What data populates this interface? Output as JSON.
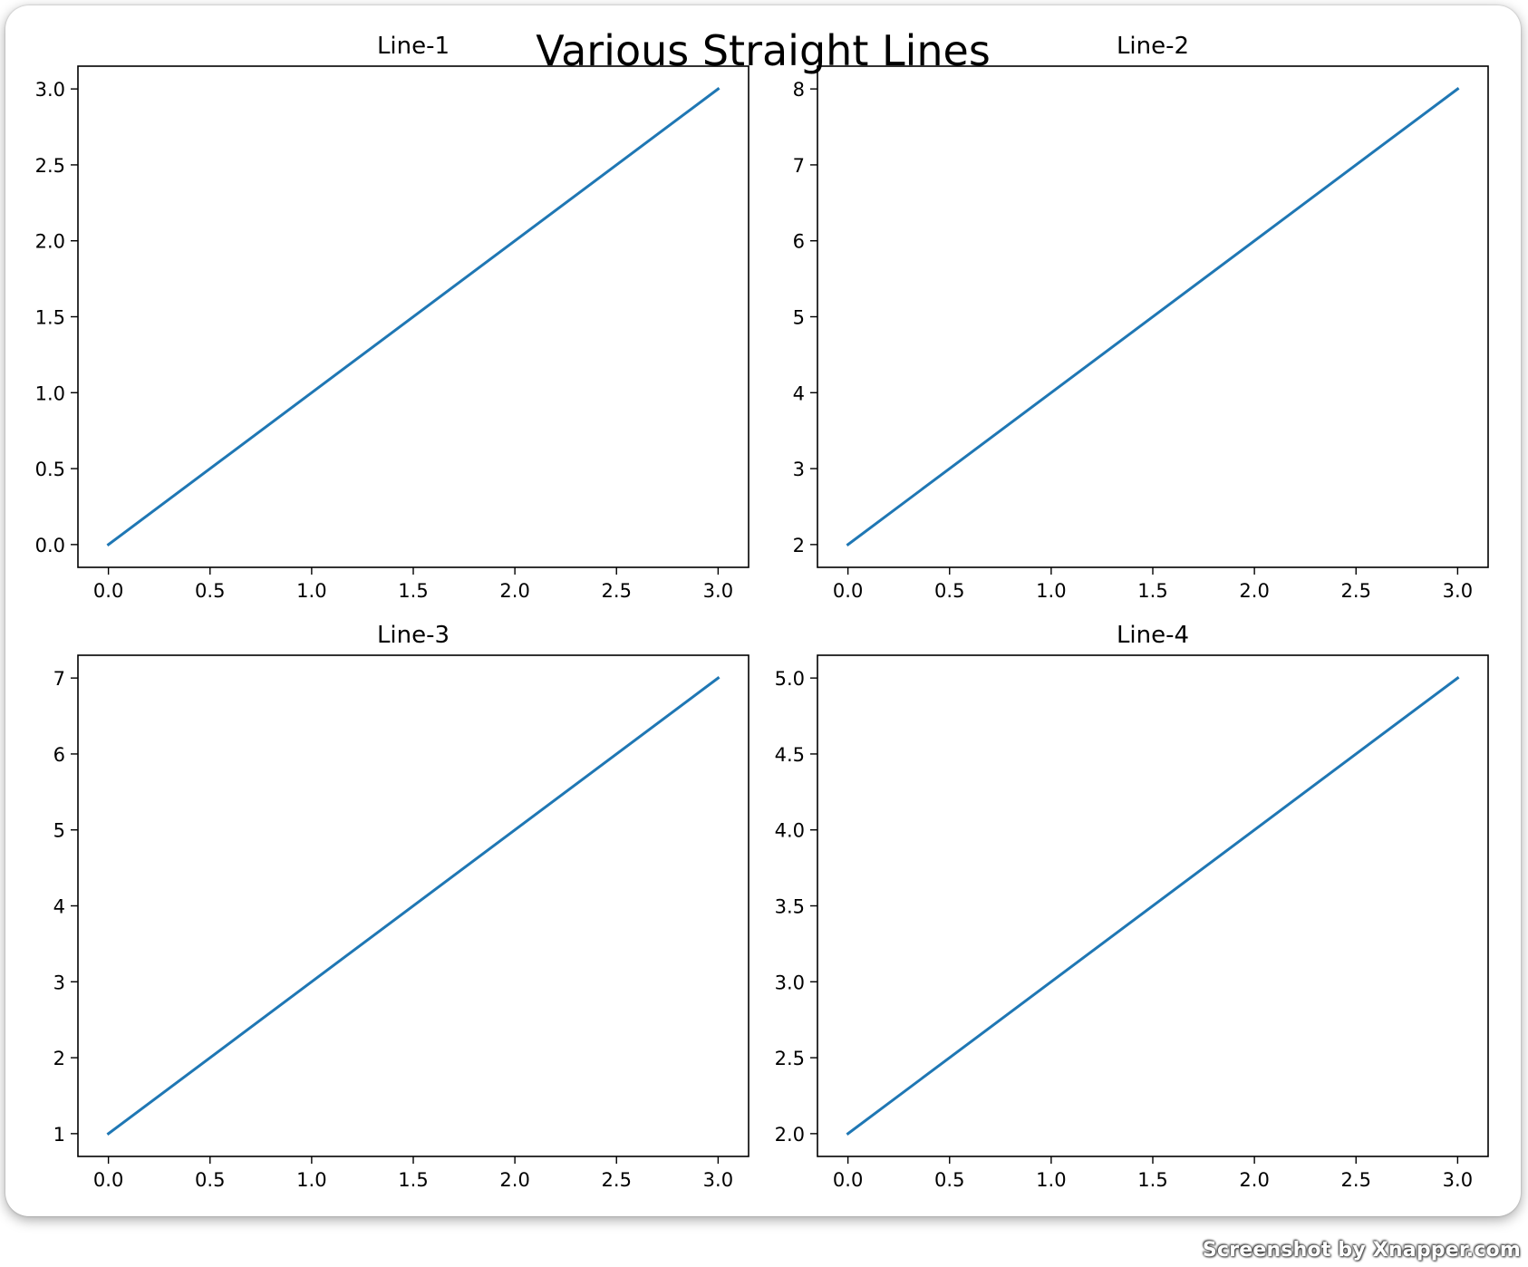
{
  "chart_data": {
    "title": "Various Straight Lines",
    "line_color": "#1f77b4",
    "subplots": [
      {
        "type": "line",
        "title": "Line-1",
        "x": [
          0,
          3
        ],
        "y": [
          0,
          3
        ],
        "xlim": [
          -0.15,
          3.15
        ],
        "ylim": [
          -0.15,
          3.15
        ],
        "xticks": [
          0.0,
          0.5,
          1.0,
          1.5,
          2.0,
          2.5,
          3.0
        ],
        "yticks": [
          0.0,
          0.5,
          1.0,
          1.5,
          2.0,
          2.5,
          3.0
        ],
        "xtick_labels": [
          "0.0",
          "0.5",
          "1.0",
          "1.5",
          "2.0",
          "2.5",
          "3.0"
        ],
        "ytick_labels": [
          "0.0",
          "0.5",
          "1.0",
          "1.5",
          "2.0",
          "2.5",
          "3.0"
        ],
        "grid": false
      },
      {
        "type": "line",
        "title": "Line-2",
        "x": [
          0,
          3
        ],
        "y": [
          2,
          8
        ],
        "xlim": [
          -0.15,
          3.15
        ],
        "ylim": [
          1.7,
          8.3
        ],
        "xticks": [
          0.0,
          0.5,
          1.0,
          1.5,
          2.0,
          2.5,
          3.0
        ],
        "yticks": [
          2,
          3,
          4,
          5,
          6,
          7,
          8
        ],
        "xtick_labels": [
          "0.0",
          "0.5",
          "1.0",
          "1.5",
          "2.0",
          "2.5",
          "3.0"
        ],
        "ytick_labels": [
          "2",
          "3",
          "4",
          "5",
          "6",
          "7",
          "8"
        ],
        "grid": false
      },
      {
        "type": "line",
        "title": "Line-3",
        "x": [
          0,
          3
        ],
        "y": [
          1,
          7
        ],
        "xlim": [
          -0.15,
          3.15
        ],
        "ylim": [
          0.7,
          7.3
        ],
        "xticks": [
          0.0,
          0.5,
          1.0,
          1.5,
          2.0,
          2.5,
          3.0
        ],
        "yticks": [
          1,
          2,
          3,
          4,
          5,
          6,
          7
        ],
        "xtick_labels": [
          "0.0",
          "0.5",
          "1.0",
          "1.5",
          "2.0",
          "2.5",
          "3.0"
        ],
        "ytick_labels": [
          "1",
          "2",
          "3",
          "4",
          "5",
          "6",
          "7"
        ],
        "grid": false
      },
      {
        "type": "line",
        "title": "Line-4",
        "x": [
          0,
          3
        ],
        "y": [
          2,
          5
        ],
        "xlim": [
          -0.15,
          3.15
        ],
        "ylim": [
          1.85,
          5.15
        ],
        "xticks": [
          0.0,
          0.5,
          1.0,
          1.5,
          2.0,
          2.5,
          3.0
        ],
        "yticks": [
          2.0,
          2.5,
          3.0,
          3.5,
          4.0,
          4.5,
          5.0
        ],
        "xtick_labels": [
          "0.0",
          "0.5",
          "1.0",
          "1.5",
          "2.0",
          "2.5",
          "3.0"
        ],
        "ytick_labels": [
          "2.0",
          "2.5",
          "3.0",
          "3.5",
          "4.0",
          "4.5",
          "5.0"
        ],
        "grid": false
      }
    ]
  },
  "watermark": "Screenshot by Xnapper.com"
}
